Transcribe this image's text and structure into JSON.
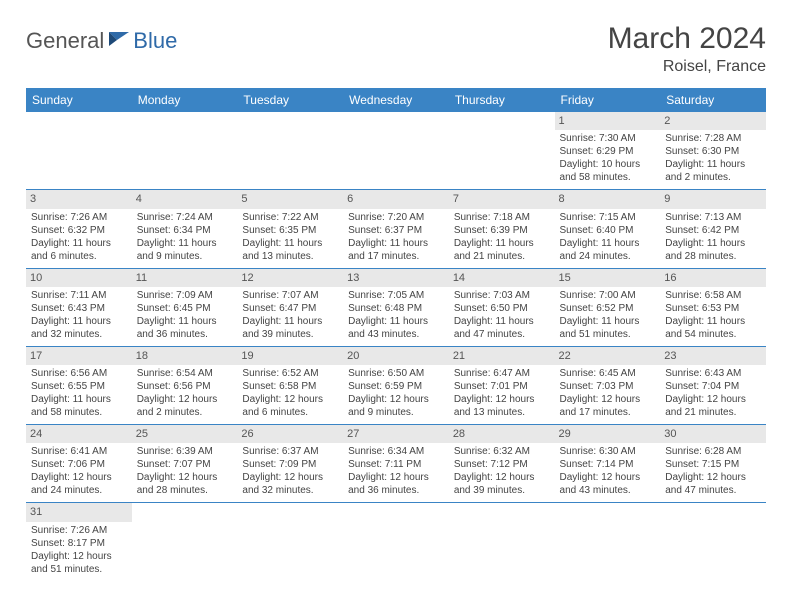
{
  "logo": {
    "part1": "General",
    "part2": "Blue"
  },
  "title": "March 2024",
  "subtitle": "Roisel, France",
  "colors": {
    "header_bg": "#3a84c5",
    "header_text": "#ffffff",
    "daynum_bg": "#e8e8e8",
    "row_border": "#3a84c5",
    "logo_accent": "#2f6aa8"
  },
  "weekdays": [
    "Sunday",
    "Monday",
    "Tuesday",
    "Wednesday",
    "Thursday",
    "Friday",
    "Saturday"
  ],
  "weeks": [
    [
      null,
      null,
      null,
      null,
      null,
      {
        "n": "1",
        "sr": "Sunrise: 7:30 AM",
        "ss": "Sunset: 6:29 PM",
        "dl": "Daylight: 10 hours and 58 minutes."
      },
      {
        "n": "2",
        "sr": "Sunrise: 7:28 AM",
        "ss": "Sunset: 6:30 PM",
        "dl": "Daylight: 11 hours and 2 minutes."
      }
    ],
    [
      {
        "n": "3",
        "sr": "Sunrise: 7:26 AM",
        "ss": "Sunset: 6:32 PM",
        "dl": "Daylight: 11 hours and 6 minutes."
      },
      {
        "n": "4",
        "sr": "Sunrise: 7:24 AM",
        "ss": "Sunset: 6:34 PM",
        "dl": "Daylight: 11 hours and 9 minutes."
      },
      {
        "n": "5",
        "sr": "Sunrise: 7:22 AM",
        "ss": "Sunset: 6:35 PM",
        "dl": "Daylight: 11 hours and 13 minutes."
      },
      {
        "n": "6",
        "sr": "Sunrise: 7:20 AM",
        "ss": "Sunset: 6:37 PM",
        "dl": "Daylight: 11 hours and 17 minutes."
      },
      {
        "n": "7",
        "sr": "Sunrise: 7:18 AM",
        "ss": "Sunset: 6:39 PM",
        "dl": "Daylight: 11 hours and 21 minutes."
      },
      {
        "n": "8",
        "sr": "Sunrise: 7:15 AM",
        "ss": "Sunset: 6:40 PM",
        "dl": "Daylight: 11 hours and 24 minutes."
      },
      {
        "n": "9",
        "sr": "Sunrise: 7:13 AM",
        "ss": "Sunset: 6:42 PM",
        "dl": "Daylight: 11 hours and 28 minutes."
      }
    ],
    [
      {
        "n": "10",
        "sr": "Sunrise: 7:11 AM",
        "ss": "Sunset: 6:43 PM",
        "dl": "Daylight: 11 hours and 32 minutes."
      },
      {
        "n": "11",
        "sr": "Sunrise: 7:09 AM",
        "ss": "Sunset: 6:45 PM",
        "dl": "Daylight: 11 hours and 36 minutes."
      },
      {
        "n": "12",
        "sr": "Sunrise: 7:07 AM",
        "ss": "Sunset: 6:47 PM",
        "dl": "Daylight: 11 hours and 39 minutes."
      },
      {
        "n": "13",
        "sr": "Sunrise: 7:05 AM",
        "ss": "Sunset: 6:48 PM",
        "dl": "Daylight: 11 hours and 43 minutes."
      },
      {
        "n": "14",
        "sr": "Sunrise: 7:03 AM",
        "ss": "Sunset: 6:50 PM",
        "dl": "Daylight: 11 hours and 47 minutes."
      },
      {
        "n": "15",
        "sr": "Sunrise: 7:00 AM",
        "ss": "Sunset: 6:52 PM",
        "dl": "Daylight: 11 hours and 51 minutes."
      },
      {
        "n": "16",
        "sr": "Sunrise: 6:58 AM",
        "ss": "Sunset: 6:53 PM",
        "dl": "Daylight: 11 hours and 54 minutes."
      }
    ],
    [
      {
        "n": "17",
        "sr": "Sunrise: 6:56 AM",
        "ss": "Sunset: 6:55 PM",
        "dl": "Daylight: 11 hours and 58 minutes."
      },
      {
        "n": "18",
        "sr": "Sunrise: 6:54 AM",
        "ss": "Sunset: 6:56 PM",
        "dl": "Daylight: 12 hours and 2 minutes."
      },
      {
        "n": "19",
        "sr": "Sunrise: 6:52 AM",
        "ss": "Sunset: 6:58 PM",
        "dl": "Daylight: 12 hours and 6 minutes."
      },
      {
        "n": "20",
        "sr": "Sunrise: 6:50 AM",
        "ss": "Sunset: 6:59 PM",
        "dl": "Daylight: 12 hours and 9 minutes."
      },
      {
        "n": "21",
        "sr": "Sunrise: 6:47 AM",
        "ss": "Sunset: 7:01 PM",
        "dl": "Daylight: 12 hours and 13 minutes."
      },
      {
        "n": "22",
        "sr": "Sunrise: 6:45 AM",
        "ss": "Sunset: 7:03 PM",
        "dl": "Daylight: 12 hours and 17 minutes."
      },
      {
        "n": "23",
        "sr": "Sunrise: 6:43 AM",
        "ss": "Sunset: 7:04 PM",
        "dl": "Daylight: 12 hours and 21 minutes."
      }
    ],
    [
      {
        "n": "24",
        "sr": "Sunrise: 6:41 AM",
        "ss": "Sunset: 7:06 PM",
        "dl": "Daylight: 12 hours and 24 minutes."
      },
      {
        "n": "25",
        "sr": "Sunrise: 6:39 AM",
        "ss": "Sunset: 7:07 PM",
        "dl": "Daylight: 12 hours and 28 minutes."
      },
      {
        "n": "26",
        "sr": "Sunrise: 6:37 AM",
        "ss": "Sunset: 7:09 PM",
        "dl": "Daylight: 12 hours and 32 minutes."
      },
      {
        "n": "27",
        "sr": "Sunrise: 6:34 AM",
        "ss": "Sunset: 7:11 PM",
        "dl": "Daylight: 12 hours and 36 minutes."
      },
      {
        "n": "28",
        "sr": "Sunrise: 6:32 AM",
        "ss": "Sunset: 7:12 PM",
        "dl": "Daylight: 12 hours and 39 minutes."
      },
      {
        "n": "29",
        "sr": "Sunrise: 6:30 AM",
        "ss": "Sunset: 7:14 PM",
        "dl": "Daylight: 12 hours and 43 minutes."
      },
      {
        "n": "30",
        "sr": "Sunrise: 6:28 AM",
        "ss": "Sunset: 7:15 PM",
        "dl": "Daylight: 12 hours and 47 minutes."
      }
    ],
    [
      {
        "n": "31",
        "sr": "Sunrise: 7:26 AM",
        "ss": "Sunset: 8:17 PM",
        "dl": "Daylight: 12 hours and 51 minutes."
      },
      null,
      null,
      null,
      null,
      null,
      null
    ]
  ]
}
